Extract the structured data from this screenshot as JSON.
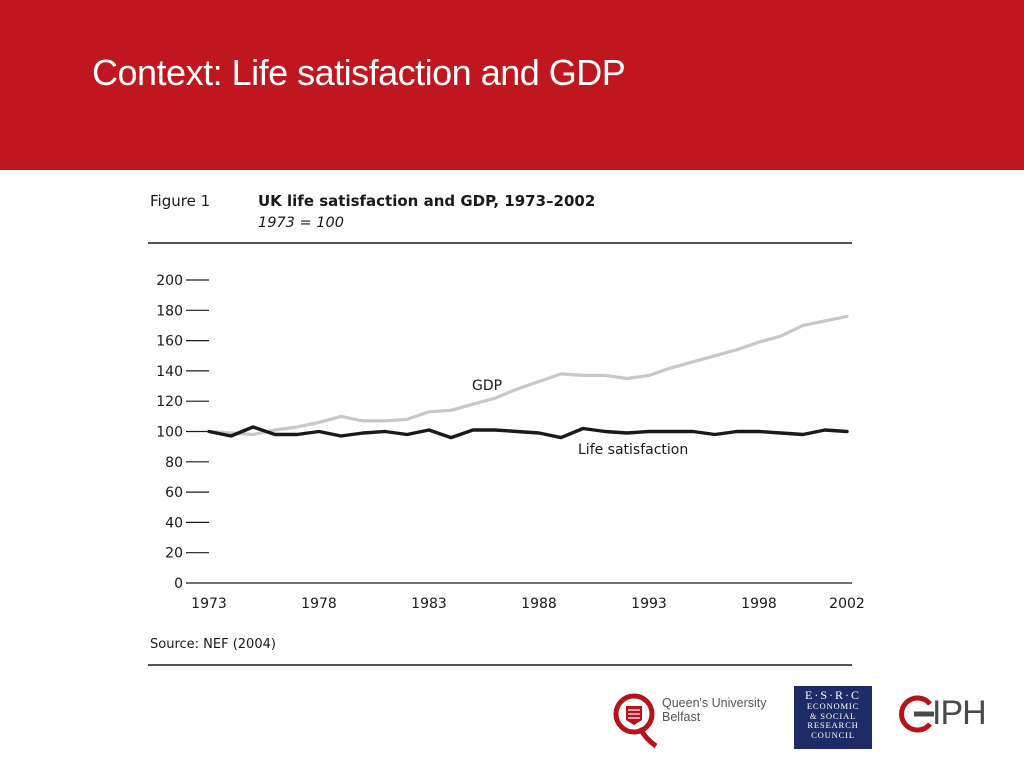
{
  "slide": {
    "title": "Context: Life satisfaction and GDP"
  },
  "figure": {
    "label": "Figure 1",
    "title": "UK life satisfaction and GDP, 1973–2002",
    "subtitle": "1973 = 100",
    "source": "Source: NEF (2004)"
  },
  "chart_data": {
    "type": "line",
    "title": "UK life satisfaction and GDP, 1973–2002",
    "subtitle": "1973 = 100",
    "xlabel": "",
    "ylabel": "",
    "ylim": [
      0,
      200
    ],
    "xlim": [
      1973,
      2002
    ],
    "y_ticks": [
      0,
      20,
      40,
      60,
      80,
      100,
      120,
      140,
      160,
      180,
      200
    ],
    "x_ticks": [
      1973,
      1978,
      1983,
      1988,
      1993,
      1998,
      2002
    ],
    "grid": false,
    "x": [
      1973,
      1974,
      1975,
      1976,
      1977,
      1978,
      1979,
      1980,
      1981,
      1982,
      1983,
      1984,
      1985,
      1986,
      1987,
      1988,
      1989,
      1990,
      1991,
      1992,
      1993,
      1994,
      1995,
      1996,
      1997,
      1998,
      1999,
      2000,
      2001,
      2002
    ],
    "series": [
      {
        "name": "GDP",
        "color": "#c8c8c8",
        "values": [
          100,
          99,
          98,
          101,
          103,
          106,
          110,
          107,
          107,
          108,
          113,
          114,
          118,
          122,
          128,
          133,
          138,
          137,
          137,
          135,
          137,
          142,
          146,
          150,
          154,
          159,
          163,
          170,
          173,
          176
        ]
      },
      {
        "name": "Life satisfaction",
        "color": "#1a1a1a",
        "values": [
          100,
          97,
          103,
          98,
          98,
          100,
          97,
          99,
          100,
          98,
          101,
          96,
          101,
          101,
          100,
          99,
          96,
          102,
          100,
          99,
          100,
          100,
          100,
          98,
          100,
          100,
          99,
          98,
          101,
          100
        ]
      }
    ]
  },
  "logos": {
    "qub": {
      "name_line1": "Queen's University",
      "name_line2": "Belfast"
    },
    "esrc": {
      "line1": "E·S·R·C",
      "line2": "ECONOMIC",
      "line3": "& SOCIAL",
      "line4": "RESEARCH",
      "line5": "COUNCIL"
    },
    "iph": {
      "text": "IPH"
    }
  },
  "colors": {
    "header": "#c0161f",
    "gdp_line": "#c8c8c8",
    "life_line": "#1a1a1a"
  }
}
